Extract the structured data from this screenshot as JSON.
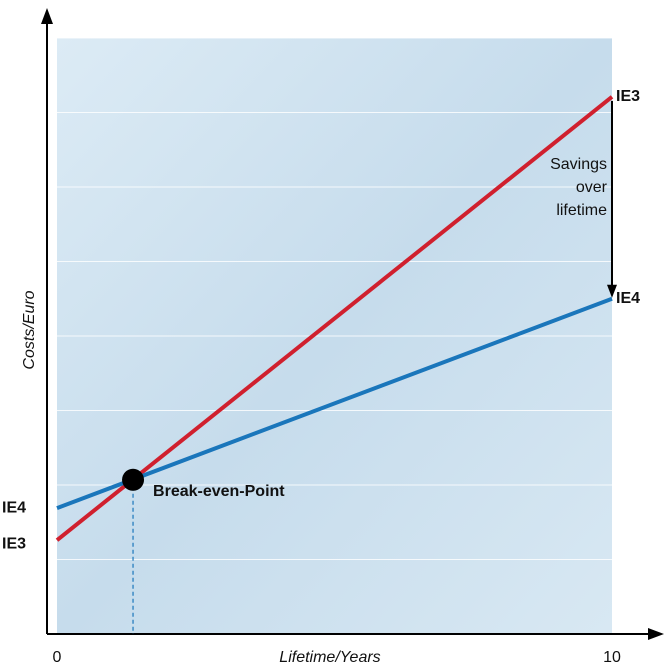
{
  "chart_data": {
    "type": "line",
    "x_label": "Lifetime/Years",
    "y_label": "Costs/Euro",
    "x": [
      0,
      10
    ],
    "series": [
      {
        "name": "IE3",
        "color": "#d0202e",
        "values": [
          1.26,
          7.21
        ]
      },
      {
        "name": "IE4",
        "color": "#1a76bb",
        "values": [
          1.69,
          4.5
        ]
      }
    ],
    "xlim": [
      0,
      10
    ],
    "xticks": [
      0,
      10
    ],
    "ylim": [
      0,
      8
    ],
    "grid_lines": [
      1,
      2,
      3,
      4,
      5,
      6,
      7,
      8
    ],
    "break_even": {
      "label": "Break-even-Point",
      "x": 1.37,
      "y": 2.07
    },
    "savings_label": [
      "Savings",
      "over",
      "lifetime"
    ]
  }
}
